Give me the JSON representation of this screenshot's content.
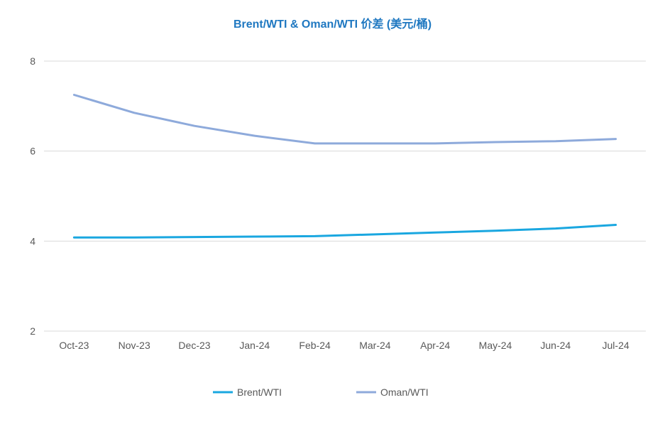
{
  "chart_data": {
    "type": "line",
    "title": "Brent/WTI & Oman/WTI 价差 (美元/桶)",
    "categories": [
      "Oct-23",
      "Nov-23",
      "Dec-23",
      "Jan-24",
      "Feb-24",
      "Mar-24",
      "Apr-24",
      "May-24",
      "Jun-24",
      "Jul-24"
    ],
    "ylim": [
      2,
      8
    ],
    "yticks": [
      2,
      4,
      6,
      8
    ],
    "grid": true,
    "legend_position": "bottom",
    "series": [
      {
        "name": "Brent/WTI",
        "color": "#1aa7e0",
        "values": [
          4.08,
          4.08,
          4.09,
          4.1,
          4.11,
          4.15,
          4.19,
          4.23,
          4.28,
          4.36
        ]
      },
      {
        "name": "Oman/WTI",
        "color": "#8eaadb",
        "values": [
          7.25,
          6.85,
          6.56,
          6.34,
          6.17,
          6.17,
          6.17,
          6.2,
          6.22,
          6.27
        ]
      }
    ]
  }
}
